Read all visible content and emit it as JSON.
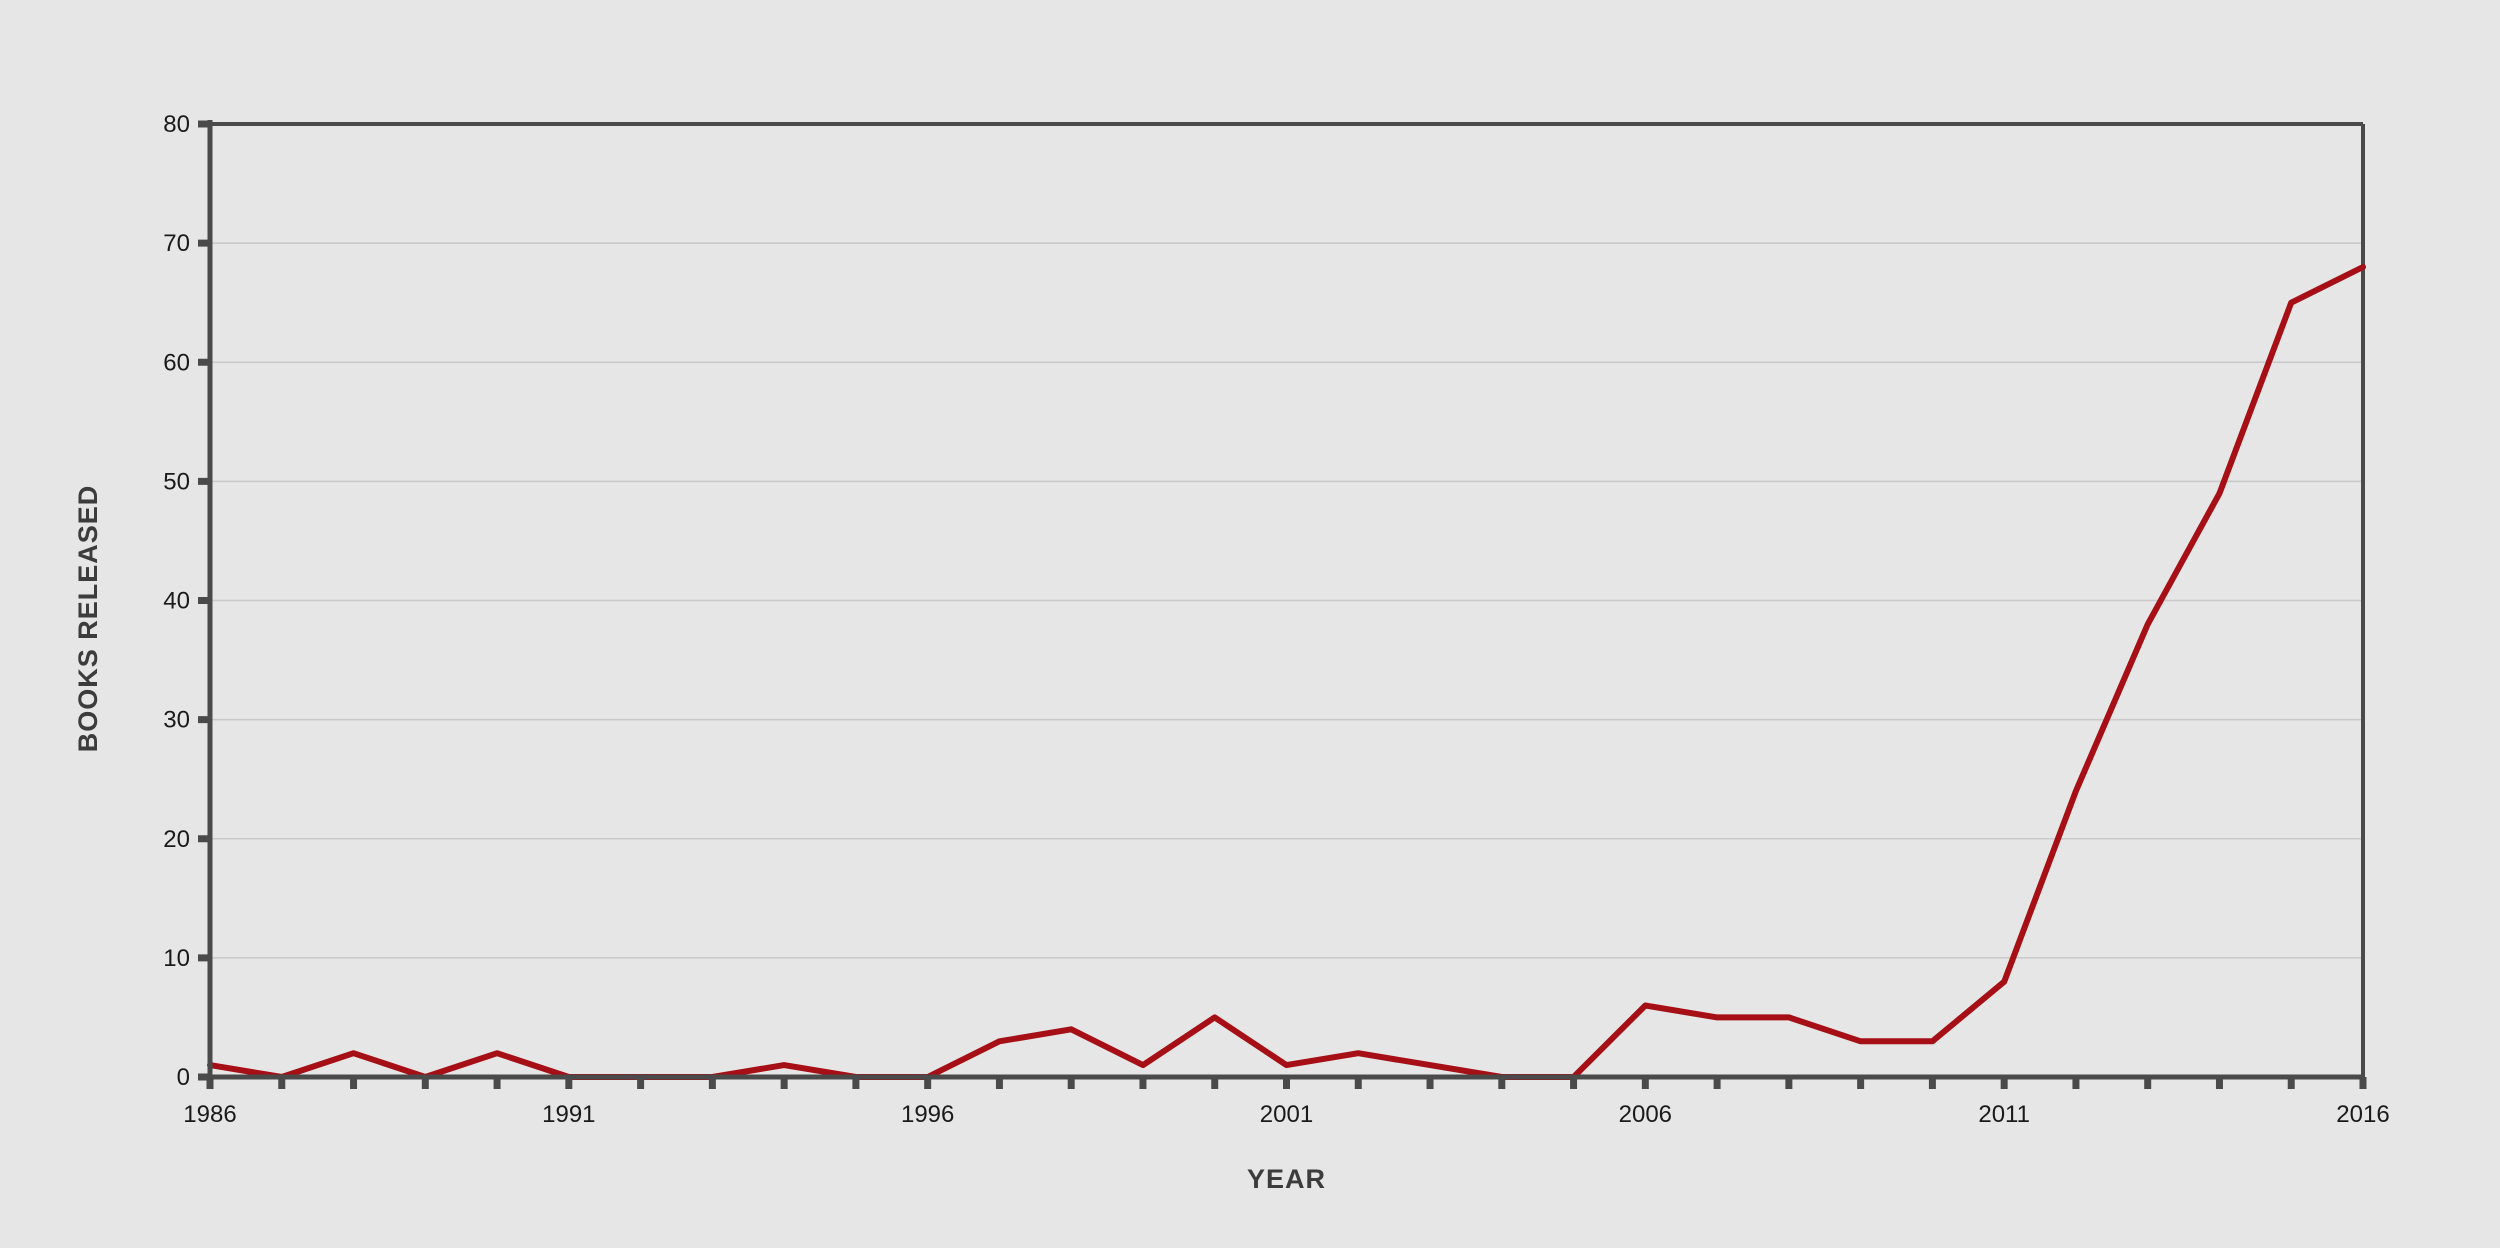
{
  "chart_data": {
    "type": "line",
    "title": "",
    "xlabel": "YEAR",
    "ylabel": "BOOKS RELEASED",
    "x": [
      1986,
      1987,
      1988,
      1989,
      1990,
      1991,
      1992,
      1993,
      1994,
      1995,
      1996,
      1997,
      1998,
      1999,
      2000,
      2001,
      2002,
      2003,
      2004,
      2005,
      2006,
      2007,
      2008,
      2009,
      2010,
      2011,
      2012,
      2013,
      2014,
      2015,
      2016
    ],
    "series": [
      {
        "values": [
          1,
          0,
          2,
          0,
          2,
          0,
          0,
          0,
          1,
          0,
          0,
          3,
          4,
          1,
          5,
          1,
          2,
          1,
          0,
          0,
          6,
          5,
          5,
          3,
          3,
          8,
          24,
          38,
          49,
          65,
          68
        ],
        "color": "#a50f15"
      }
    ],
    "xlim": [
      1986,
      2016
    ],
    "ylim": [
      0,
      80
    ],
    "x_tick_labels": [
      "1986",
      "1991",
      "1996",
      "2001",
      "2006",
      "2011",
      "2016"
    ],
    "y_tick_labels": [
      "0",
      "10",
      "20",
      "30",
      "40",
      "50",
      "60",
      "70",
      "80"
    ],
    "grid": "horizontal",
    "legend": "none"
  }
}
